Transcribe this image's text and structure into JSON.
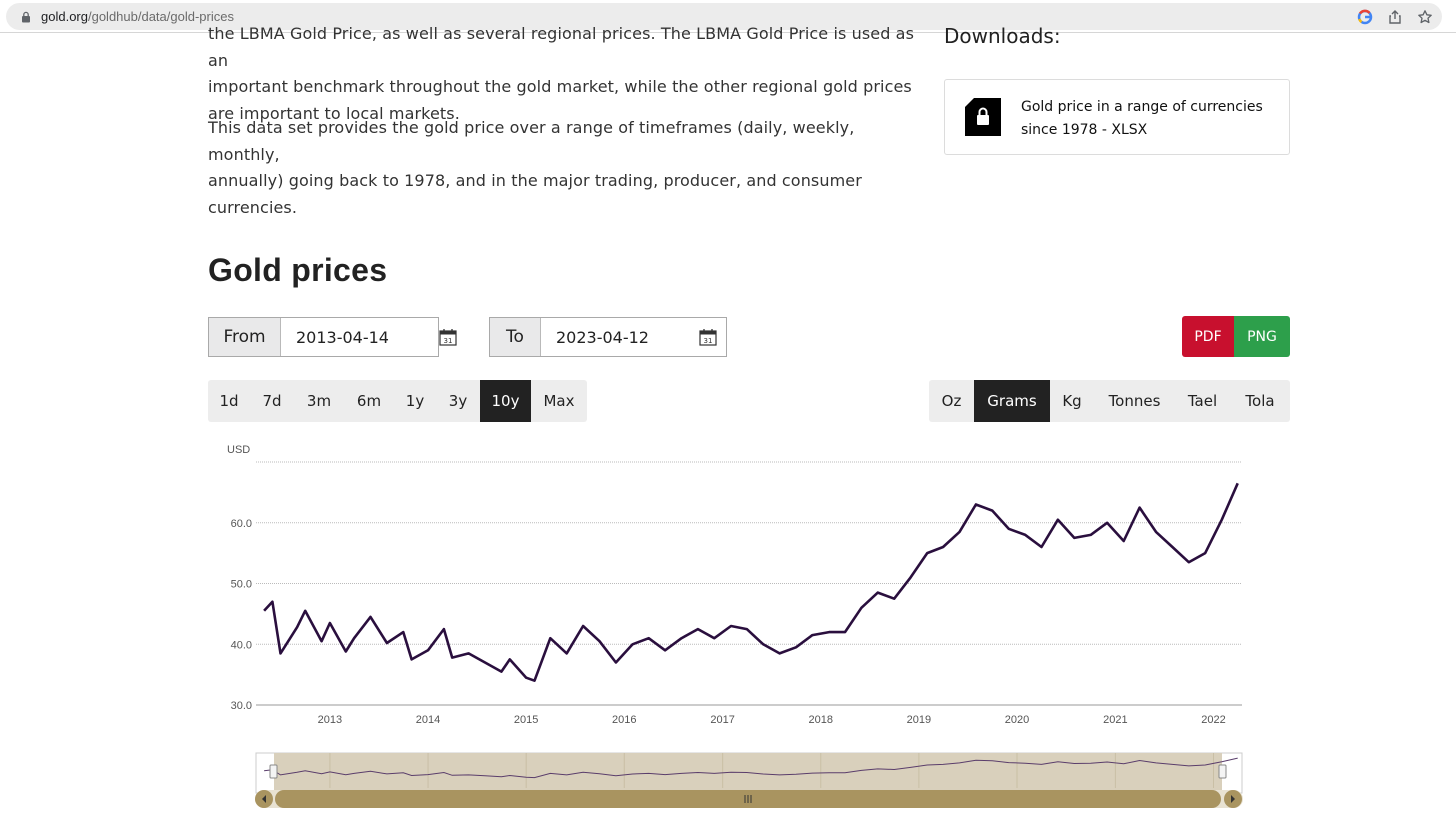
{
  "browser": {
    "url_domain": "gold.org",
    "url_path": "/goldhub/data/gold-prices"
  },
  "intro": {
    "line1": "the LBMA Gold Price, as well as several regional prices. The LBMA Gold Price is used as an",
    "line2": "important benchmark throughout the gold market, while the other regional gold prices",
    "line3": "are important to local markets.",
    "para2_line1": "This data set provides the gold price over a range of timeframes (daily, weekly, monthly,",
    "para2_line2": "annually) going back to 1978, and in the major trading, producer, and consumer",
    "para2_line3": "currencies."
  },
  "downloads": {
    "title": "Downloads:",
    "item_line1": "Gold price in a range of currencies",
    "item_line2": "since 1978 - XLSX"
  },
  "section_title": "Gold prices",
  "date_range": {
    "from_label": "From",
    "from_value": "2013-04-14",
    "to_label": "To",
    "to_value": "2023-04-12",
    "calendar_day": "31"
  },
  "export": {
    "pdf": "PDF",
    "png": "PNG"
  },
  "range_buttons": [
    "1d",
    "7d",
    "3m",
    "6m",
    "1y",
    "3y",
    "10y",
    "Max"
  ],
  "range_active": "10y",
  "unit_buttons": [
    "Oz",
    "Grams",
    "Kg",
    "Tonnes",
    "Tael",
    "Tola"
  ],
  "unit_active": "Grams",
  "colors": {
    "line": "#2a0f3e",
    "navigator_fill": "#d9d0bc",
    "scrollbar": "#a99460",
    "active_button": "#222222",
    "pdf": "#c8102e",
    "png": "#2d9f4b"
  },
  "chart_data": {
    "type": "line",
    "ylabel": "USD",
    "ylim": [
      30,
      70
    ],
    "yticks": [
      "30.0",
      "40.0",
      "50.0",
      "60.0"
    ],
    "xticks": [
      "2013",
      "2014",
      "2015",
      "2016",
      "2017",
      "2018",
      "2019",
      "2020",
      "2021",
      "2022"
    ],
    "grid": true,
    "series": [
      {
        "x": [
          "2012-05",
          "2012-06",
          "2012-07",
          "2012-09",
          "2012-10",
          "2012-12",
          "2013-01",
          "2013-03",
          "2013-04",
          "2013-06",
          "2013-08",
          "2013-10",
          "2013-11",
          "2014-01",
          "2014-03",
          "2014-04",
          "2014-06",
          "2014-08",
          "2014-10",
          "2014-11",
          "2015-01",
          "2015-02",
          "2015-04",
          "2015-06",
          "2015-08",
          "2015-10",
          "2015-12",
          "2016-02",
          "2016-04",
          "2016-06",
          "2016-08",
          "2016-10",
          "2016-12",
          "2017-02",
          "2017-04",
          "2017-06",
          "2017-08",
          "2017-10",
          "2017-12",
          "2018-02",
          "2018-04",
          "2018-06",
          "2018-08",
          "2018-10",
          "2018-12",
          "2019-02",
          "2019-04",
          "2019-06",
          "2019-08",
          "2019-10",
          "2019-12",
          "2020-02",
          "2020-04",
          "2020-06",
          "2020-08",
          "2020-10",
          "2020-12",
          "2021-02",
          "2021-04",
          "2021-06",
          "2021-08",
          "2021-10",
          "2021-12",
          "2022-02",
          "2022-04"
        ],
        "values": [
          45.5,
          47.0,
          38.5,
          42.8,
          45.5,
          40.5,
          43.5,
          38.8,
          41.0,
          44.5,
          40.2,
          42.0,
          37.5,
          39.0,
          42.5,
          37.8,
          38.5,
          37.0,
          35.5,
          37.5,
          34.5,
          34.0,
          41.0,
          38.5,
          43.0,
          40.5,
          37.0,
          40.0,
          41.0,
          39.0,
          41.0,
          42.5,
          41.0,
          43.0,
          42.5,
          40.0,
          38.5,
          39.5,
          41.5,
          42.0,
          42.0,
          46.0,
          48.5,
          47.5,
          51.0,
          55.0,
          56.0,
          58.5,
          63.0,
          62.0,
          59.0,
          58.0,
          56.0,
          60.5,
          57.5,
          58.0,
          60.0,
          57.0,
          62.5,
          58.5,
          56.0,
          53.5,
          55.0,
          60.5,
          66.5
        ]
      }
    ]
  }
}
